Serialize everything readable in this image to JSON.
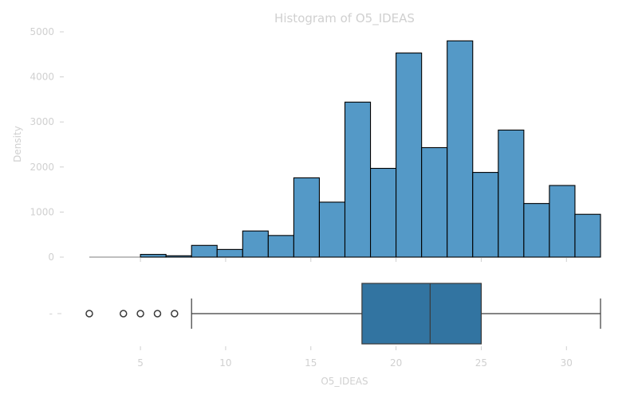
{
  "chart_data": [
    {
      "type": "bar",
      "title": "Histogram of O5_IDEAS",
      "ylabel": "Density",
      "xlabel": "",
      "ylim": [
        0,
        5000
      ],
      "yticks": [
        "0",
        "1000",
        "2000",
        "3000",
        "4000",
        "5000"
      ],
      "xlim": [
        0.5,
        32
      ],
      "bin_edges": [
        2,
        3.5,
        5,
        6.5,
        8,
        9.5,
        11,
        12.5,
        14,
        15.5,
        17,
        18.5,
        20,
        21.5,
        23,
        24.5,
        26,
        27.5,
        29,
        30.5,
        32
      ],
      "values": [
        0,
        0,
        60,
        30,
        260,
        170,
        580,
        480,
        1760,
        1220,
        3440,
        1970,
        4530,
        2430,
        4800,
        1880,
        2820,
        1190,
        1590,
        950
      ],
      "bar_color": "#5499c7",
      "edge_color": "#000000",
      "grid": false
    },
    {
      "type": "box",
      "xlabel": "O5_IDEAS",
      "xticks": [
        "5",
        "10",
        "15",
        "20",
        "25",
        "30"
      ],
      "ytick": "-",
      "whisker_low": 8,
      "q1": 18,
      "median": 22,
      "q3": 25,
      "whisker_high": 32,
      "outliers": [
        2,
        4,
        5,
        6,
        7
      ],
      "box_color": "#3274a1"
    }
  ]
}
